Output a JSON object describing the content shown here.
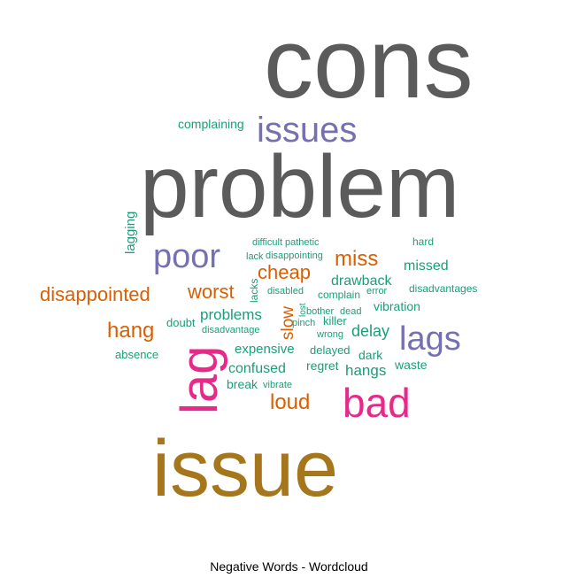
{
  "chart_data": {
    "type": "wordcloud",
    "title": "Negative Words - Wordcloud",
    "palette": {
      "gray": "#5b5b5b",
      "purple": "#7570b3",
      "teal": "#1b9e77",
      "orange": "#d95f02",
      "magenta": "#e7298a",
      "olive": "#a6761d"
    },
    "words": [
      {
        "text": "cons",
        "color": "gray"
      },
      {
        "text": "problem",
        "color": "gray"
      },
      {
        "text": "issue",
        "color": "olive"
      },
      {
        "text": "issues",
        "color": "purple"
      },
      {
        "text": "lag",
        "color": "magenta"
      },
      {
        "text": "bad",
        "color": "magenta"
      },
      {
        "text": "lags",
        "color": "purple"
      },
      {
        "text": "poor",
        "color": "purple"
      },
      {
        "text": "complaining",
        "color": "teal"
      },
      {
        "text": "lagging",
        "color": "teal"
      },
      {
        "text": "difficult",
        "color": "teal"
      },
      {
        "text": "pathetic",
        "color": "teal"
      },
      {
        "text": "hard",
        "color": "teal"
      },
      {
        "text": "lack",
        "color": "teal"
      },
      {
        "text": "disappointing",
        "color": "teal"
      },
      {
        "text": "miss",
        "color": "orange"
      },
      {
        "text": "cheap",
        "color": "orange"
      },
      {
        "text": "missed",
        "color": "teal"
      },
      {
        "text": "disappointed",
        "color": "orange"
      },
      {
        "text": "worst",
        "color": "orange"
      },
      {
        "text": "lacks",
        "color": "teal"
      },
      {
        "text": "disabled",
        "color": "teal"
      },
      {
        "text": "complain",
        "color": "teal"
      },
      {
        "text": "error",
        "color": "teal"
      },
      {
        "text": "drawback",
        "color": "teal"
      },
      {
        "text": "disadvantages",
        "color": "teal"
      },
      {
        "text": "lost",
        "color": "teal"
      },
      {
        "text": "problems",
        "color": "teal"
      },
      {
        "text": "slow",
        "color": "orange"
      },
      {
        "text": "bother",
        "color": "teal"
      },
      {
        "text": "dead",
        "color": "teal"
      },
      {
        "text": "vibration",
        "color": "teal"
      },
      {
        "text": "hang",
        "color": "orange"
      },
      {
        "text": "doubt",
        "color": "teal"
      },
      {
        "text": "disadvantage",
        "color": "teal"
      },
      {
        "text": "pinch",
        "color": "teal"
      },
      {
        "text": "killer",
        "color": "teal"
      },
      {
        "text": "wrong",
        "color": "teal"
      },
      {
        "text": "delay",
        "color": "teal"
      },
      {
        "text": "absence",
        "color": "teal"
      },
      {
        "text": "expensive",
        "color": "teal"
      },
      {
        "text": "delayed",
        "color": "teal"
      },
      {
        "text": "dark",
        "color": "teal"
      },
      {
        "text": "confused",
        "color": "teal"
      },
      {
        "text": "regret",
        "color": "teal"
      },
      {
        "text": "hangs",
        "color": "teal"
      },
      {
        "text": "waste",
        "color": "teal"
      },
      {
        "text": "break",
        "color": "teal"
      },
      {
        "text": "vibrate",
        "color": "teal"
      },
      {
        "text": "loud",
        "color": "orange"
      }
    ]
  }
}
